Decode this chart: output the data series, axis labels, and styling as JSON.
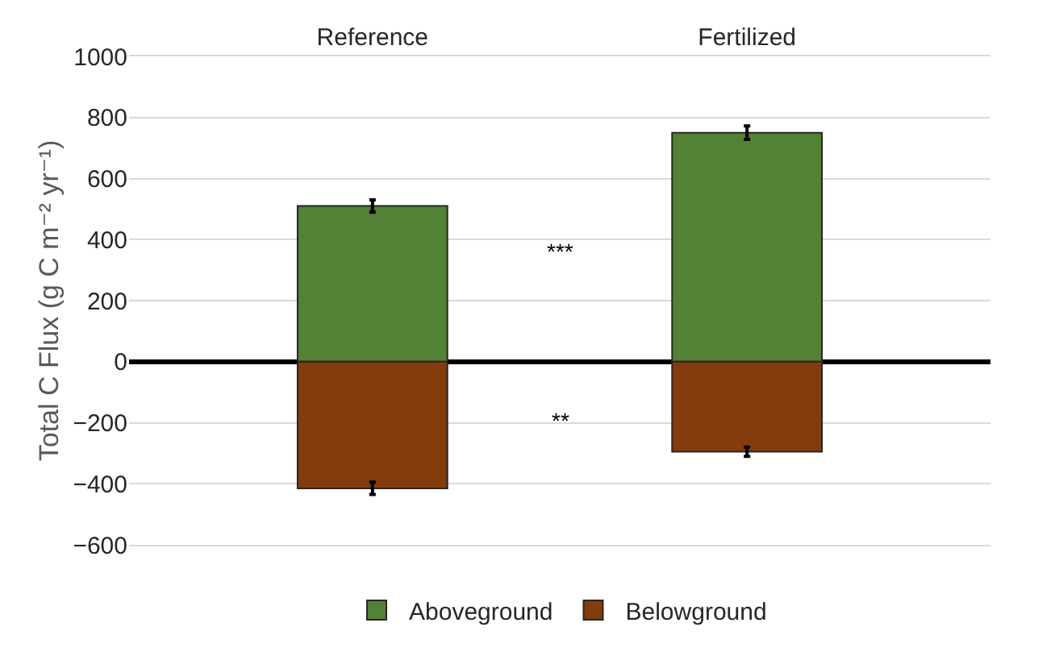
{
  "chart_data": {
    "type": "bar",
    "stacked": true,
    "ylabel": "Total C Flux (g C m⁻² yr⁻¹)",
    "categories": [
      "Reference",
      "Fertilized"
    ],
    "series": [
      {
        "name": "Aboveground",
        "color": "#538135",
        "values": [
          510,
          750
        ],
        "errors": [
          20,
          22
        ]
      },
      {
        "name": "Belowground",
        "color": "#843c0c",
        "values": [
          -415,
          -295
        ],
        "errors": [
          20,
          15
        ]
      }
    ],
    "ylim": [
      -600,
      1000
    ],
    "yticks": [
      {
        "value": -600,
        "label": "−600"
      },
      {
        "value": -400,
        "label": "−400"
      },
      {
        "value": -200,
        "label": "−200"
      },
      0,
      200,
      400,
      600,
      800,
      1000
    ],
    "grid": "y",
    "legend": "bottom",
    "annotations": [
      "***",
      "**"
    ]
  }
}
